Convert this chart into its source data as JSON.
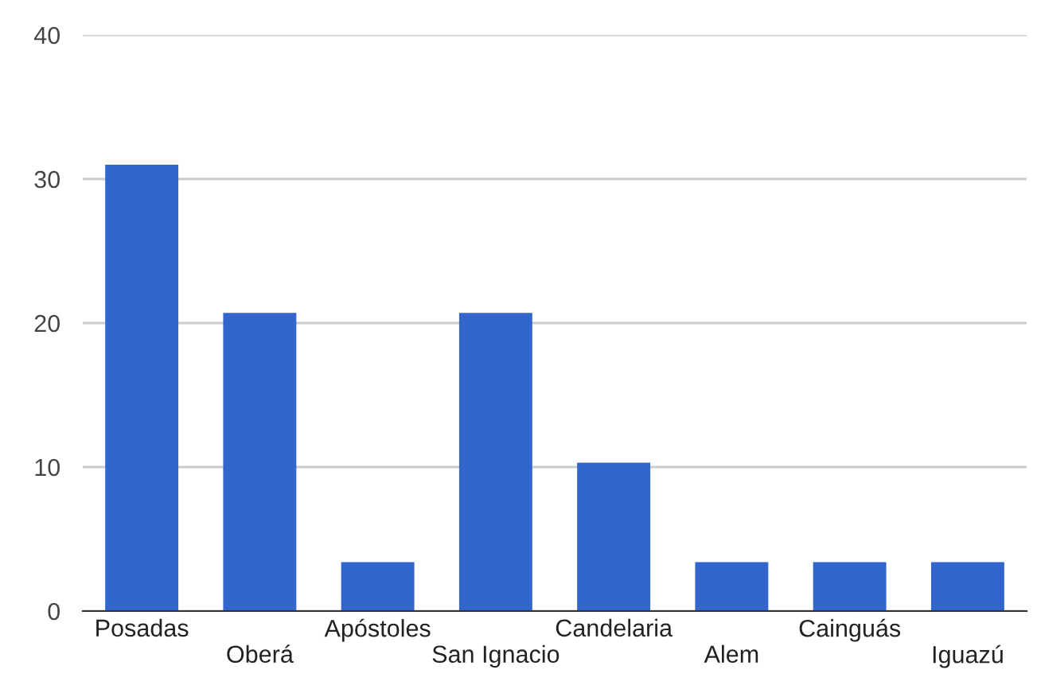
{
  "chart_data": {
    "type": "bar",
    "categories": [
      "Posadas",
      "Oberá",
      "Apóstoles",
      "San Ignacio",
      "Candelaria",
      "Alem",
      "Cainguás",
      "Iguazú"
    ],
    "values": [
      31.0,
      20.7,
      3.4,
      20.7,
      10.3,
      3.4,
      3.4,
      3.4
    ],
    "color": "#3366cc",
    "ylim": [
      0,
      40
    ],
    "yticks": [
      0,
      10,
      20,
      30,
      40
    ],
    "grid": "y",
    "legend": false
  }
}
